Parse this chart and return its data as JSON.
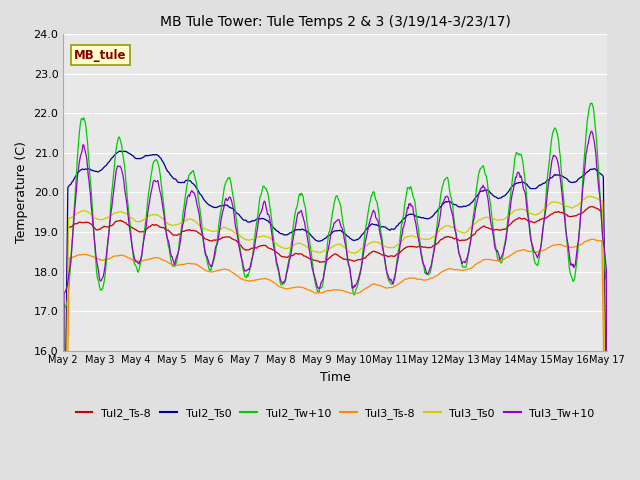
{
  "title": "MB Tule Tower: Tule Temps 2 & 3 (3/19/14-3/23/17)",
  "xlabel": "Time",
  "ylabel": "Temperature (C)",
  "ylim": [
    16.0,
    24.0
  ],
  "yticks": [
    16.0,
    17.0,
    18.0,
    19.0,
    20.0,
    21.0,
    22.0,
    23.0,
    24.0
  ],
  "xtick_labels": [
    "May 2",
    "May 3",
    "May 4",
    "May 5",
    "May 6",
    "May 7",
    "May 8",
    "May 9",
    "May 10",
    "May 11",
    "May 12",
    "May 13",
    "May 14",
    "May 15",
    "May 16",
    "May 17"
  ],
  "num_days": 15,
  "pts_per_day": 48,
  "figsize": [
    6.4,
    4.8
  ],
  "dpi": 100,
  "plot_bg_color": "#e8e8e8",
  "fig_bg_color": "#e0e0e0",
  "legend_label_text": "MB_tule",
  "series_colors": {
    "Tul2_Ts-8": "#cc0000",
    "Tul2_Ts0": "#000099",
    "Tul2_Tw+10": "#00cc00",
    "Tul3_Ts-8": "#ff8800",
    "Tul3_Ts0": "#cccc00",
    "Tul3_Tw+10": "#9900cc"
  },
  "legend_entries": [
    "Tul2_Ts-8",
    "Tul2_Ts0",
    "Tul2_Tw+10",
    "Tul3_Ts-8",
    "Tul3_Ts0",
    "Tul3_Tw+10"
  ]
}
